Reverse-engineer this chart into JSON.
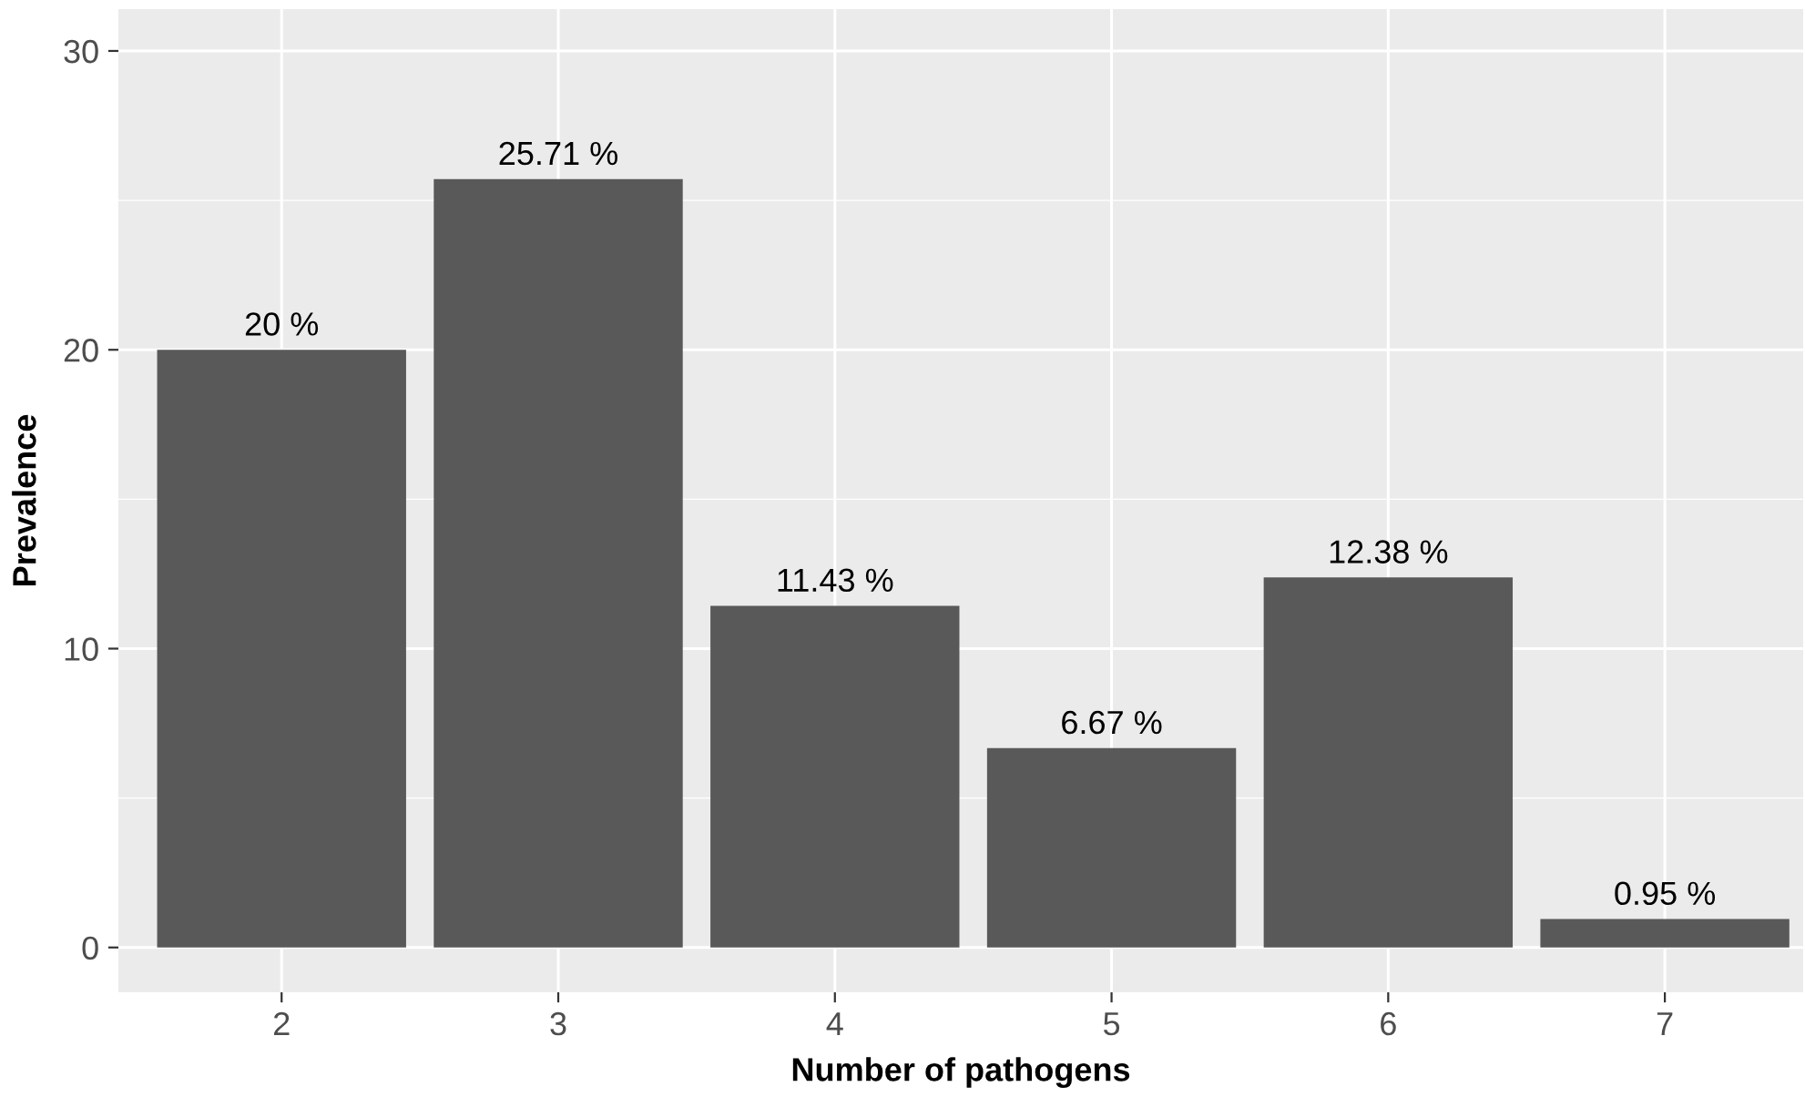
{
  "chart_data": {
    "type": "bar",
    "xlabel": "Number of pathogens",
    "ylabel": "Prevalence",
    "categories": [
      "2",
      "3",
      "4",
      "5",
      "6",
      "7"
    ],
    "values": [
      20,
      25.71,
      11.43,
      6.67,
      12.38,
      0.95
    ],
    "value_labels": [
      "20 %",
      "25.71 %",
      "11.43 %",
      "6.67 %",
      "12.38 %",
      "0.95 %"
    ],
    "color": "#595959",
    "ylim": [
      -1.5,
      31.4
    ],
    "yticks": [
      0,
      {
        "value": 5,
        "label": null
      },
      10,
      {
        "value": 15,
        "label": null
      },
      20,
      {
        "value": 25,
        "label": null
      },
      30
    ],
    "grid": true
  }
}
